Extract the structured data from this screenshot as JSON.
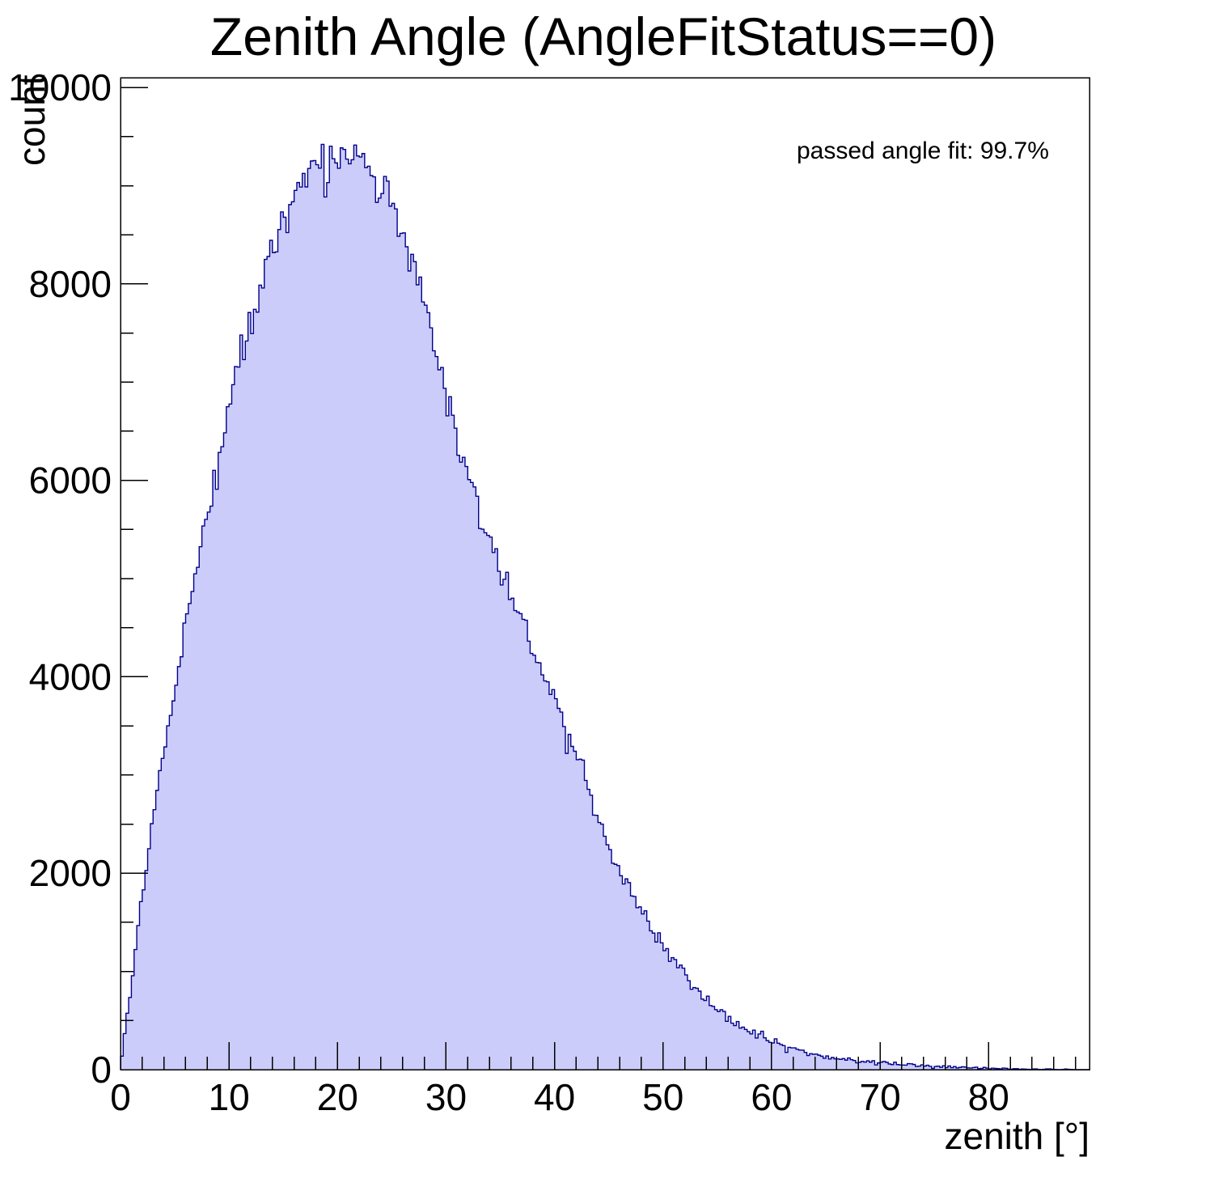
{
  "title": "Zenith Angle (AngleFitStatus==0)",
  "annotation": {
    "text": "passed angle fit: 99.7%"
  },
  "axes": {
    "x": {
      "title": "zenith [°]",
      "tick_values": [
        0,
        10,
        20,
        30,
        40,
        50,
        60,
        70,
        80
      ],
      "tick_labels": [
        "0",
        "10",
        "20",
        "30",
        "40",
        "50",
        "60",
        "70",
        "80"
      ],
      "minor_step": 2
    },
    "y": {
      "title": "count",
      "tick_values": [
        0,
        2000,
        4000,
        6000,
        8000,
        10000
      ],
      "tick_labels": [
        "0",
        "2000",
        "4000",
        "6000",
        "8000",
        "10000"
      ],
      "minor_step": 500
    }
  },
  "colors": {
    "histogram_fill": "#ccccfa",
    "histogram_line": "#00008b",
    "frame": "#000000",
    "text": "#000000",
    "background": "#ffffff"
  },
  "chart_data": {
    "type": "bar",
    "style": "filled-step-histogram",
    "title": "Zenith Angle (AngleFitStatus==0)",
    "xlabel": "zenith [°]",
    "ylabel": "count",
    "annotation": "passed angle fit: 99.7%",
    "xlim": [
      0,
      89.3
    ],
    "ylim": [
      0,
      10100
    ],
    "grid": false,
    "legend": null,
    "bin_width_deg": 0.25,
    "data_max_deg": 88.3,
    "peak": {
      "deg": 19,
      "count": 9320
    },
    "envelope_deg_step": 1,
    "envelope_counts": [
      60,
      850,
      1800,
      2620,
      3280,
      3900,
      4500,
      5080,
      5660,
      6230,
      6780,
      7240,
      7660,
      8030,
      8340,
      8610,
      8860,
      9080,
      9240,
      9320,
      9310,
      9270,
      9220,
      9140,
      9000,
      8820,
      8540,
      8200,
      7850,
      7350,
      6900,
      6450,
      6050,
      5720,
      5400,
      5110,
      4820,
      4530,
      4250,
      4000,
      3790,
      3500,
      3200,
      2900,
      2570,
      2280,
      2060,
      1850,
      1620,
      1420,
      1260,
      1100,
      950,
      820,
      710,
      620,
      535,
      455,
      385,
      330,
      290,
      248,
      210,
      178,
      150,
      128,
      112,
      100,
      88,
      78,
      70,
      61,
      54,
      47,
      41,
      35,
      30,
      25,
      21,
      17,
      14,
      11,
      9,
      7,
      6,
      5,
      4,
      3,
      1,
      0
    ],
    "jitter": {
      "seed": 12,
      "scale": 2.6,
      "outlier_prob": 0.05,
      "outlier_mult": 2.3
    }
  }
}
